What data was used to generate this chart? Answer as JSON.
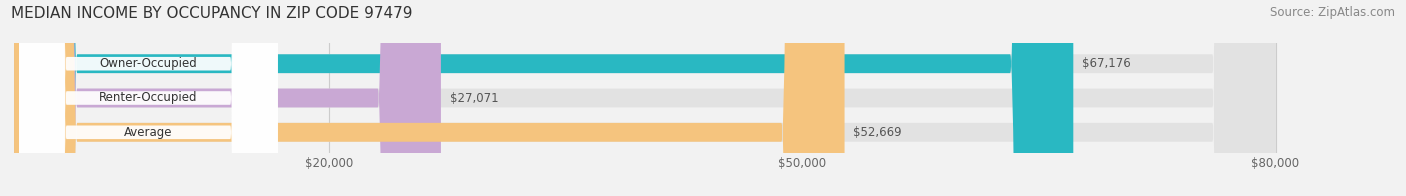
{
  "title": "MEDIAN INCOME BY OCCUPANCY IN ZIP CODE 97479",
  "source": "Source: ZipAtlas.com",
  "categories": [
    "Owner-Occupied",
    "Renter-Occupied",
    "Average"
  ],
  "values": [
    67176,
    27071,
    52669
  ],
  "bar_colors": [
    "#29b8c2",
    "#c9a8d4",
    "#f5c47e"
  ],
  "value_labels": [
    "$67,176",
    "$27,071",
    "$52,669"
  ],
  "xlim": [
    0,
    80000
  ],
  "xticks": [
    20000,
    50000,
    80000
  ],
  "xtick_labels": [
    "$20,000",
    "$50,000",
    "$80,000"
  ],
  "background_color": "#f2f2f2",
  "bar_bg_color": "#e2e2e2",
  "title_fontsize": 11,
  "source_fontsize": 8.5,
  "bar_height": 0.55,
  "figsize": [
    14.06,
    1.96
  ],
  "dpi": 100
}
